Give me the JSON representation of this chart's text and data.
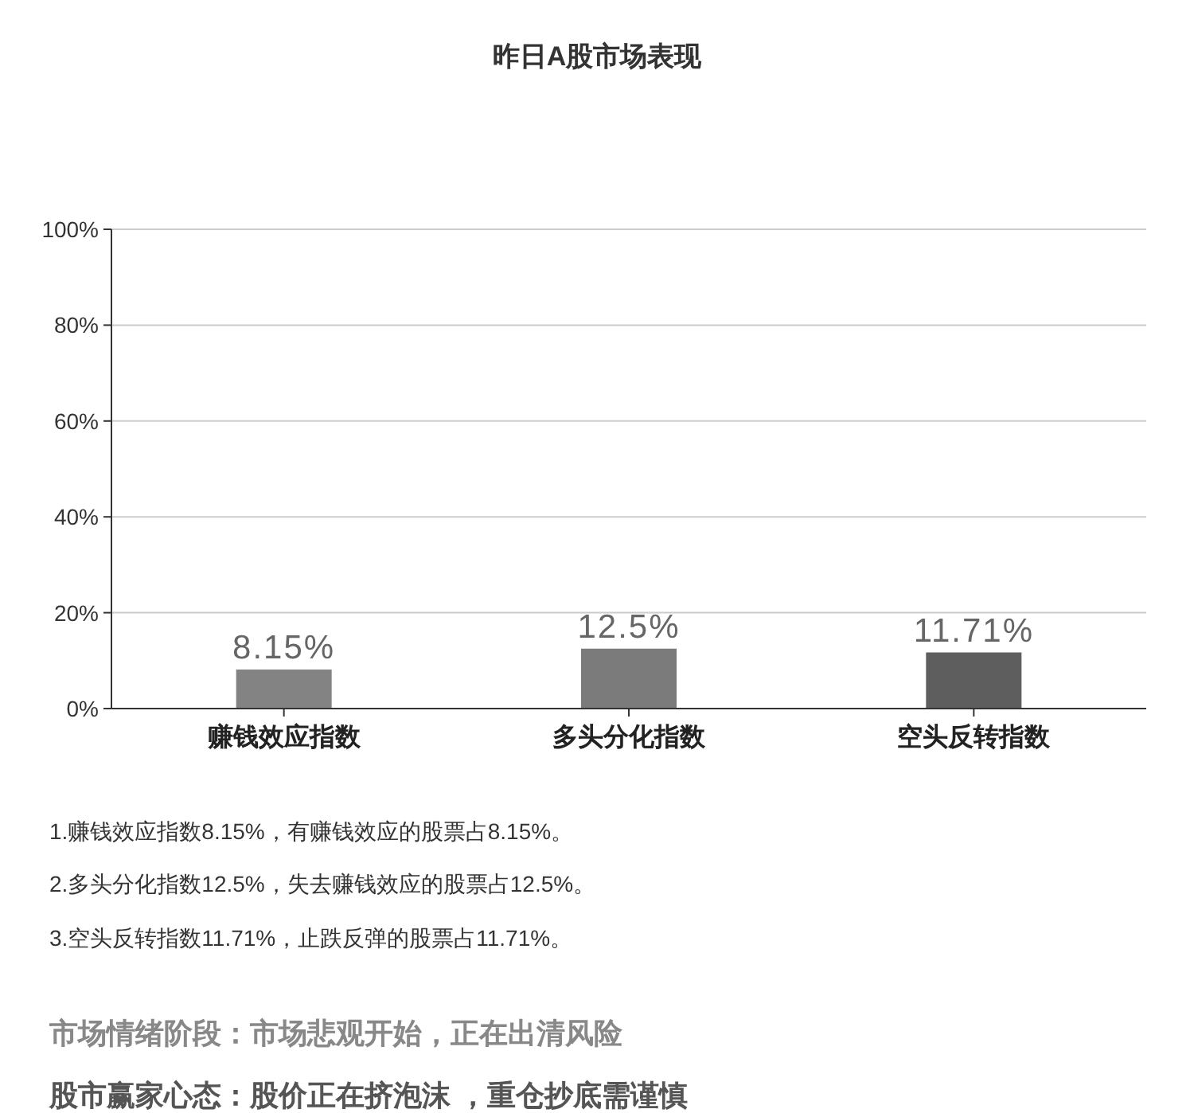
{
  "chart_data": {
    "type": "bar",
    "title": "昨日A股市场表现",
    "categories": [
      "赚钱效应指数",
      "多头分化指数",
      "空头反转指数"
    ],
    "values": [
      8.15,
      12.5,
      11.71
    ],
    "colors": [
      "#838383",
      "#7b7b7b",
      "#5e5e5e"
    ],
    "value_labels": [
      "8.15%",
      "12.5%",
      "11.71%"
    ],
    "ylim": [
      0,
      100
    ],
    "yticks": [
      {
        "value": 0,
        "label": "0%"
      },
      {
        "value": 20,
        "label": "20%"
      },
      {
        "value": 40,
        "label": "40%"
      },
      {
        "value": 60,
        "label": "60%"
      },
      {
        "value": 80,
        "label": "80%"
      },
      {
        "value": 100,
        "label": "100%"
      }
    ],
    "grid": "y",
    "annotations": [
      "1.赚钱效应指数8.15%，有赚钱效应的股票占8.15%。",
      "2.多头分化指数12.5%，失去赚钱效应的股票占12.5%。",
      "3.空头反转指数11.71%，止跌反弹的股票占11.71%。",
      "市场情绪阶段：市场悲观开始，正在出清风险",
      "股市赢家心态：股价正在挤泡沫 ，重仓抄底需谨慎"
    ]
  }
}
